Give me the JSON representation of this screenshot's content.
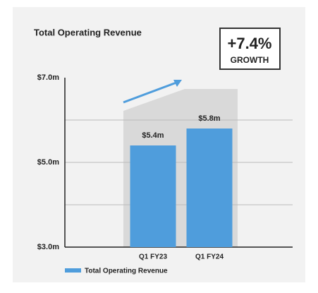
{
  "chart_data": {
    "type": "bar",
    "title": "Total Operating Revenue",
    "badge": {
      "value_text": "+7.4%",
      "label": "GROWTH"
    },
    "categories": [
      "Q1 FY23",
      "Q1 FY24"
    ],
    "series": [
      {
        "name": "Total Operating Revenue",
        "color": "#4f9ddc",
        "values": [
          5.4,
          5.8
        ],
        "value_labels": [
          "$5.4m",
          "$5.8m"
        ]
      }
    ],
    "ylim": [
      3.0,
      7.0
    ],
    "yticks": [
      {
        "value": 3.0,
        "label": "$3.0m"
      },
      {
        "value": 4.0,
        "label": null
      },
      {
        "value": 5.0,
        "label": "$5.0m"
      },
      {
        "value": 6.0,
        "label": null
      },
      {
        "value": 7.0,
        "label": "$7.0m"
      }
    ],
    "grid": true
  }
}
